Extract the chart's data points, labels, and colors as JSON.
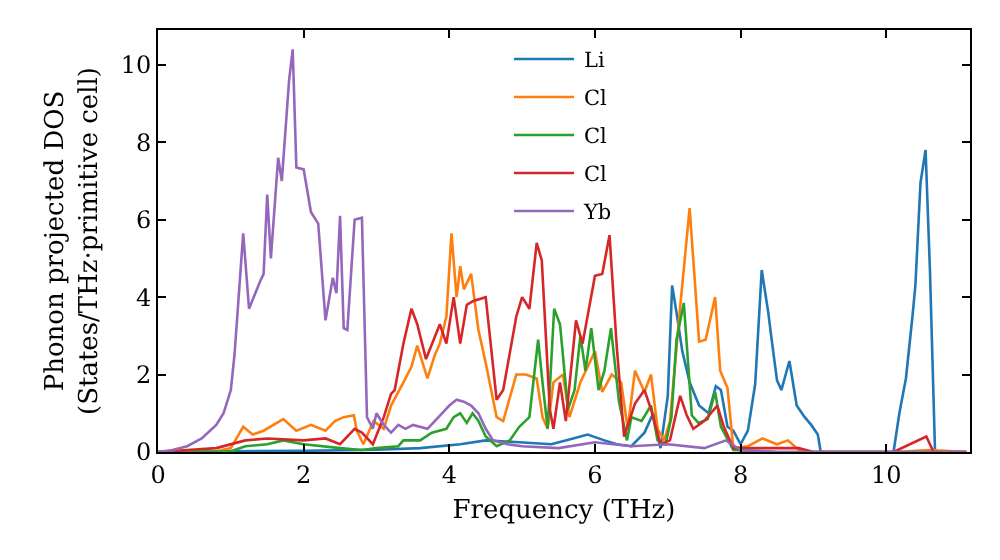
{
  "chart_data": {
    "type": "line",
    "xlabel": "Frequency (THz)",
    "ylabel": "Phonon projected DOS\n(States/THz·primitive cell)",
    "xlim": [
      0,
      11.15
    ],
    "ylim": [
      0,
      10.9
    ],
    "xticks": [
      0,
      2,
      4,
      6,
      8,
      10
    ],
    "yticks": [
      0,
      2,
      4,
      6,
      8,
      10
    ],
    "grid": false,
    "legend": "top",
    "marker": "none",
    "line_style": "solid",
    "series": [
      {
        "name": "Li",
        "color": "#1f77b4",
        "x": [
          0,
          1,
          2,
          3,
          3.6,
          4.15,
          4.5,
          4.96,
          5.4,
          5.7,
          5.9,
          6.13,
          6.3,
          6.5,
          6.68,
          6.8,
          6.9,
          7.0,
          7.06,
          7.12,
          7.2,
          7.3,
          7.43,
          7.56,
          7.66,
          7.73,
          7.82,
          7.9,
          8.0,
          8.1,
          8.2,
          8.29,
          8.38,
          8.42,
          8.5,
          8.56,
          8.67,
          8.77,
          8.88,
          8.97,
          9.06,
          9.1,
          10.1,
          10.18,
          10.27,
          10.36,
          10.4,
          10.47,
          10.54,
          10.6,
          10.67,
          11.1
        ],
        "values": [
          0,
          0.02,
          0.03,
          0.06,
          0.1,
          0.2,
          0.3,
          0.25,
          0.2,
          0.35,
          0.45,
          0.3,
          0.2,
          0.15,
          0.5,
          1.0,
          0.1,
          1.45,
          4.3,
          3.6,
          2.6,
          1.8,
          1.2,
          1.0,
          1.7,
          1.6,
          0.65,
          0.55,
          0.2,
          0.55,
          1.75,
          4.7,
          3.6,
          3.0,
          1.85,
          1.6,
          2.35,
          1.2,
          0.9,
          0.7,
          0.45,
          0,
          0,
          1.0,
          1.9,
          3.5,
          4.3,
          6.95,
          7.8,
          4.7,
          0,
          0
        ]
      },
      {
        "name": "Cl",
        "color": "#ff7f0e",
        "x": [
          0,
          0.8,
          1.0,
          1.17,
          1.3,
          1.45,
          1.72,
          1.9,
          2.1,
          2.3,
          2.43,
          2.55,
          2.69,
          2.73,
          2.82,
          2.96,
          3.1,
          3.2,
          3.37,
          3.48,
          3.56,
          3.7,
          3.8,
          3.87,
          3.96,
          4.03,
          4.1,
          4.15,
          4.2,
          4.3,
          4.4,
          4.5,
          4.65,
          4.74,
          4.92,
          5.05,
          5.2,
          5.28,
          5.35,
          5.43,
          5.56,
          5.65,
          5.8,
          5.9,
          6.0,
          6.1,
          6.23,
          6.36,
          6.45,
          6.55,
          6.68,
          6.77,
          6.86,
          6.95,
          7.03,
          7.17,
          7.3,
          7.43,
          7.52,
          7.65,
          7.72,
          7.82,
          7.9,
          8.1,
          8.3,
          8.5,
          8.65,
          8.8,
          9.0,
          10.1,
          10.6,
          11.1
        ],
        "values": [
          0,
          0.02,
          0.1,
          0.65,
          0.45,
          0.55,
          0.85,
          0.55,
          0.7,
          0.55,
          0.8,
          0.9,
          0.95,
          0.55,
          0.2,
          0.8,
          0.6,
          1.2,
          1.8,
          2.2,
          2.75,
          1.9,
          2.5,
          2.8,
          3.5,
          5.65,
          4.0,
          4.8,
          4.2,
          4.6,
          3.15,
          2.3,
          0.9,
          0.8,
          2.0,
          2.0,
          1.9,
          0.9,
          0.6,
          1.8,
          2.0,
          0.9,
          1.8,
          2.2,
          2.6,
          1.55,
          2.0,
          1.8,
          0.6,
          2.1,
          1.55,
          2.0,
          0.6,
          0.3,
          0.8,
          3.75,
          6.3,
          2.85,
          2.9,
          4.0,
          2.1,
          1.65,
          0.1,
          0.15,
          0.35,
          0.2,
          0.3,
          0.05,
          0,
          0,
          0.05,
          0
        ]
      },
      {
        "name": "Cl",
        "color": "#2ca02c",
        "x": [
          0,
          1.0,
          1.2,
          1.5,
          1.72,
          2.0,
          2.5,
          2.8,
          3.0,
          3.3,
          3.37,
          3.6,
          3.76,
          3.96,
          4.06,
          4.15,
          4.24,
          4.32,
          4.4,
          4.5,
          4.65,
          4.83,
          4.96,
          5.1,
          5.22,
          5.28,
          5.35,
          5.44,
          5.52,
          5.63,
          5.72,
          5.8,
          5.87,
          5.95,
          6.05,
          6.13,
          6.22,
          6.33,
          6.44,
          6.5,
          6.64,
          6.77,
          6.86,
          6.97,
          7.05,
          7.12,
          7.22,
          7.33,
          7.42,
          7.55,
          7.65,
          7.73,
          7.9,
          8.5,
          11.1
        ],
        "values": [
          0,
          0.02,
          0.15,
          0.2,
          0.3,
          0.2,
          0.1,
          0.05,
          0.1,
          0.15,
          0.3,
          0.3,
          0.5,
          0.6,
          0.9,
          1.0,
          0.75,
          1.0,
          0.8,
          0.4,
          0.15,
          0.3,
          0.65,
          0.9,
          2.9,
          1.8,
          0.6,
          3.7,
          3.3,
          1.1,
          1.6,
          3.0,
          2.1,
          3.2,
          1.6,
          2.1,
          3.2,
          1.3,
          0.3,
          0.9,
          0.8,
          1.2,
          0.3,
          0.2,
          0.9,
          2.9,
          3.85,
          0.95,
          0.75,
          0.85,
          1.55,
          0.65,
          0.05,
          0,
          0
        ]
      },
      {
        "name": "Cl",
        "color": "#d62728",
        "x": [
          0,
          0.8,
          1.2,
          1.5,
          2.0,
          2.3,
          2.5,
          2.7,
          2.8,
          2.95,
          3.1,
          3.2,
          3.25,
          3.37,
          3.48,
          3.56,
          3.68,
          3.87,
          3.96,
          4.06,
          4.15,
          4.24,
          4.33,
          4.5,
          4.65,
          4.74,
          4.92,
          5.0,
          5.1,
          5.2,
          5.27,
          5.38,
          5.43,
          5.52,
          5.6,
          5.74,
          5.83,
          6.0,
          6.1,
          6.2,
          6.3,
          6.4,
          6.55,
          6.68,
          6.77,
          6.9,
          7.03,
          7.17,
          7.26,
          7.35,
          7.5,
          7.68,
          7.77,
          7.9,
          8.8,
          9.0,
          10.1,
          10.55,
          10.65,
          11.1
        ],
        "values": [
          0,
          0.1,
          0.3,
          0.35,
          0.3,
          0.35,
          0.2,
          0.6,
          0.5,
          0.2,
          0.9,
          1.5,
          1.6,
          2.8,
          3.7,
          3.3,
          2.4,
          3.3,
          2.8,
          4.0,
          2.8,
          3.8,
          3.9,
          4.0,
          1.35,
          1.6,
          3.5,
          4.0,
          3.7,
          5.4,
          4.95,
          1.1,
          0.6,
          1.8,
          0.8,
          3.4,
          2.8,
          4.55,
          4.6,
          5.6,
          2.7,
          0.4,
          1.25,
          1.6,
          1.1,
          0.2,
          0.3,
          1.45,
          0.95,
          0.6,
          0.8,
          1.2,
          0.65,
          0.1,
          0.1,
          0,
          0,
          0.4,
          0,
          0
        ]
      },
      {
        "name": "Yb",
        "color": "#9467bd",
        "x": [
          0,
          0.2,
          0.4,
          0.6,
          0.8,
          0.9,
          1.0,
          1.05,
          1.1,
          1.17,
          1.25,
          1.4,
          1.45,
          1.5,
          1.55,
          1.65,
          1.7,
          1.8,
          1.85,
          1.9,
          2.0,
          2.1,
          2.2,
          2.3,
          2.4,
          2.45,
          2.5,
          2.55,
          2.6,
          2.7,
          2.8,
          2.87,
          2.95,
          3.0,
          3.1,
          3.2,
          3.3,
          3.4,
          3.5,
          3.7,
          3.8,
          3.9,
          4.0,
          4.1,
          4.2,
          4.3,
          4.4,
          4.5,
          4.6,
          4.8,
          5.0,
          5.5,
          6.0,
          6.5,
          7.0,
          7.5,
          7.8,
          8.0,
          8.5,
          11.1
        ],
        "values": [
          0,
          0.05,
          0.15,
          0.35,
          0.7,
          1.0,
          1.6,
          2.5,
          3.8,
          5.65,
          3.7,
          4.4,
          4.6,
          6.65,
          5.0,
          7.6,
          7.0,
          9.6,
          10.4,
          7.35,
          7.3,
          6.2,
          5.9,
          3.4,
          4.5,
          4.1,
          6.1,
          3.2,
          3.15,
          6.0,
          6.05,
          0.9,
          0.6,
          1.0,
          0.7,
          0.5,
          0.7,
          0.6,
          0.7,
          0.6,
          0.8,
          1.0,
          1.2,
          1.35,
          1.3,
          1.2,
          1.0,
          0.6,
          0.3,
          0.2,
          0.15,
          0.1,
          0.25,
          0.15,
          0.2,
          0.1,
          0.3,
          0.05,
          0,
          0
        ]
      }
    ]
  }
}
